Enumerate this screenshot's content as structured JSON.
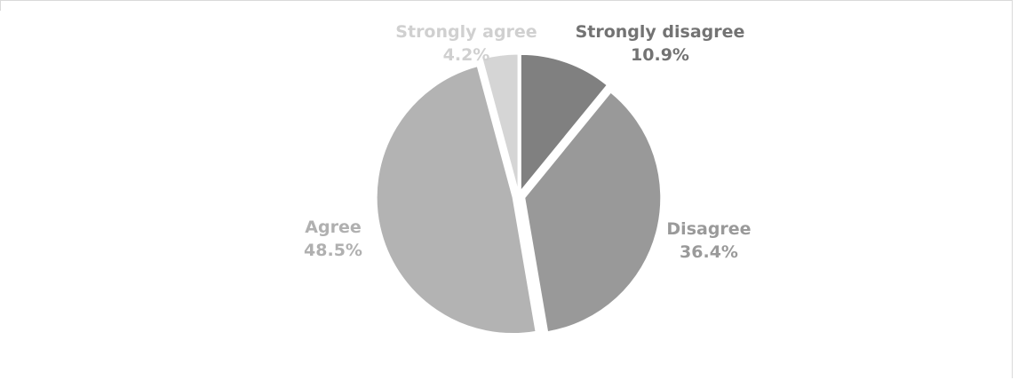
{
  "chart_data": {
    "type": "pie",
    "title": "",
    "slices": [
      {
        "label": "Strongly disagree",
        "value": 10.9,
        "value_label": "10.9%",
        "color": "#808080",
        "label_color": "#737373"
      },
      {
        "label": "Disagree",
        "value": 36.4,
        "value_label": "36.4%",
        "color": "#999999",
        "label_color": "#9a9a9a"
      },
      {
        "label": "Agree",
        "value": 48.5,
        "value_label": "48.5%",
        "color": "#b3b3b3",
        "label_color": "#b0b0b0"
      },
      {
        "label": "Strongly agree",
        "value": 4.2,
        "value_label": "4.2%",
        "color": "#d5d5d5",
        "label_color": "#d0d0d0"
      }
    ],
    "start_angle_deg": 0,
    "direction": "clockwise",
    "exploded": true,
    "legend": "none"
  }
}
